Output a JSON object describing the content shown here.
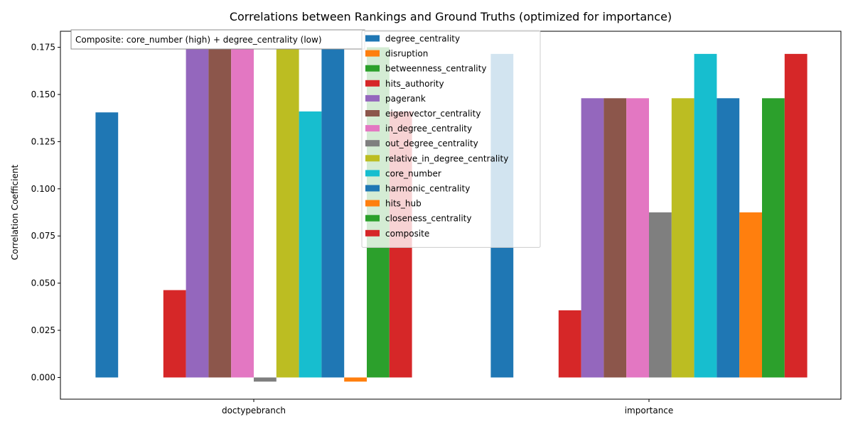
{
  "chart_data": {
    "type": "bar",
    "title": "Correlations between Rankings and Ground Truths (optimized for importance)",
    "xlabel": "",
    "ylabel": "Correlation Coefficient",
    "ylim": [
      -0.0115,
      0.1835
    ],
    "yticks": [
      0.0,
      0.025,
      0.05,
      0.075,
      0.1,
      0.125,
      0.15,
      0.175
    ],
    "ytick_labels": [
      "0.000",
      "0.025",
      "0.050",
      "0.075",
      "0.100",
      "0.125",
      "0.150",
      "0.175"
    ],
    "categories": [
      "doctypebranch",
      "importance"
    ],
    "grid": false,
    "legend_position": "top-center",
    "annotation": "Composite: core_number (high) + degree_centrality (low)",
    "series": [
      {
        "name": "degree_centrality",
        "color": "#1f77b4",
        "values": [
          0.1405,
          0.1715
        ]
      },
      {
        "name": "disruption",
        "color": "#ff7f0e",
        "values": [
          0.0,
          0.0
        ]
      },
      {
        "name": "betweenness_centrality",
        "color": "#2ca02c",
        "values": [
          0.0,
          0.0
        ]
      },
      {
        "name": "hits_authority",
        "color": "#d62728",
        "values": [
          0.0463,
          0.0356
        ]
      },
      {
        "name": "pagerank",
        "color": "#9467bd",
        "values": [
          0.175,
          0.148
        ]
      },
      {
        "name": "eigenvector_centrality",
        "color": "#8c564b",
        "values": [
          0.175,
          0.148
        ]
      },
      {
        "name": "in_degree_centrality",
        "color": "#e377c2",
        "values": [
          0.175,
          0.148
        ]
      },
      {
        "name": "out_degree_centrality",
        "color": "#7f7f7f",
        "values": [
          -0.0022,
          0.0875
        ]
      },
      {
        "name": "relative_in_degree_centrality",
        "color": "#bcbd22",
        "values": [
          0.175,
          0.148
        ]
      },
      {
        "name": "core_number",
        "color": "#17becf",
        "values": [
          0.141,
          0.1715
        ]
      },
      {
        "name": "harmonic_centrality",
        "color": "#1f77b4",
        "values": [
          0.175,
          0.148
        ]
      },
      {
        "name": "hits_hub",
        "color": "#ff7f0e",
        "values": [
          -0.0022,
          0.0875
        ]
      },
      {
        "name": "closeness_centrality",
        "color": "#2ca02c",
        "values": [
          0.175,
          0.148
        ]
      },
      {
        "name": "composite",
        "color": "#d62728",
        "values": [
          0.141,
          0.1715
        ]
      }
    ]
  }
}
